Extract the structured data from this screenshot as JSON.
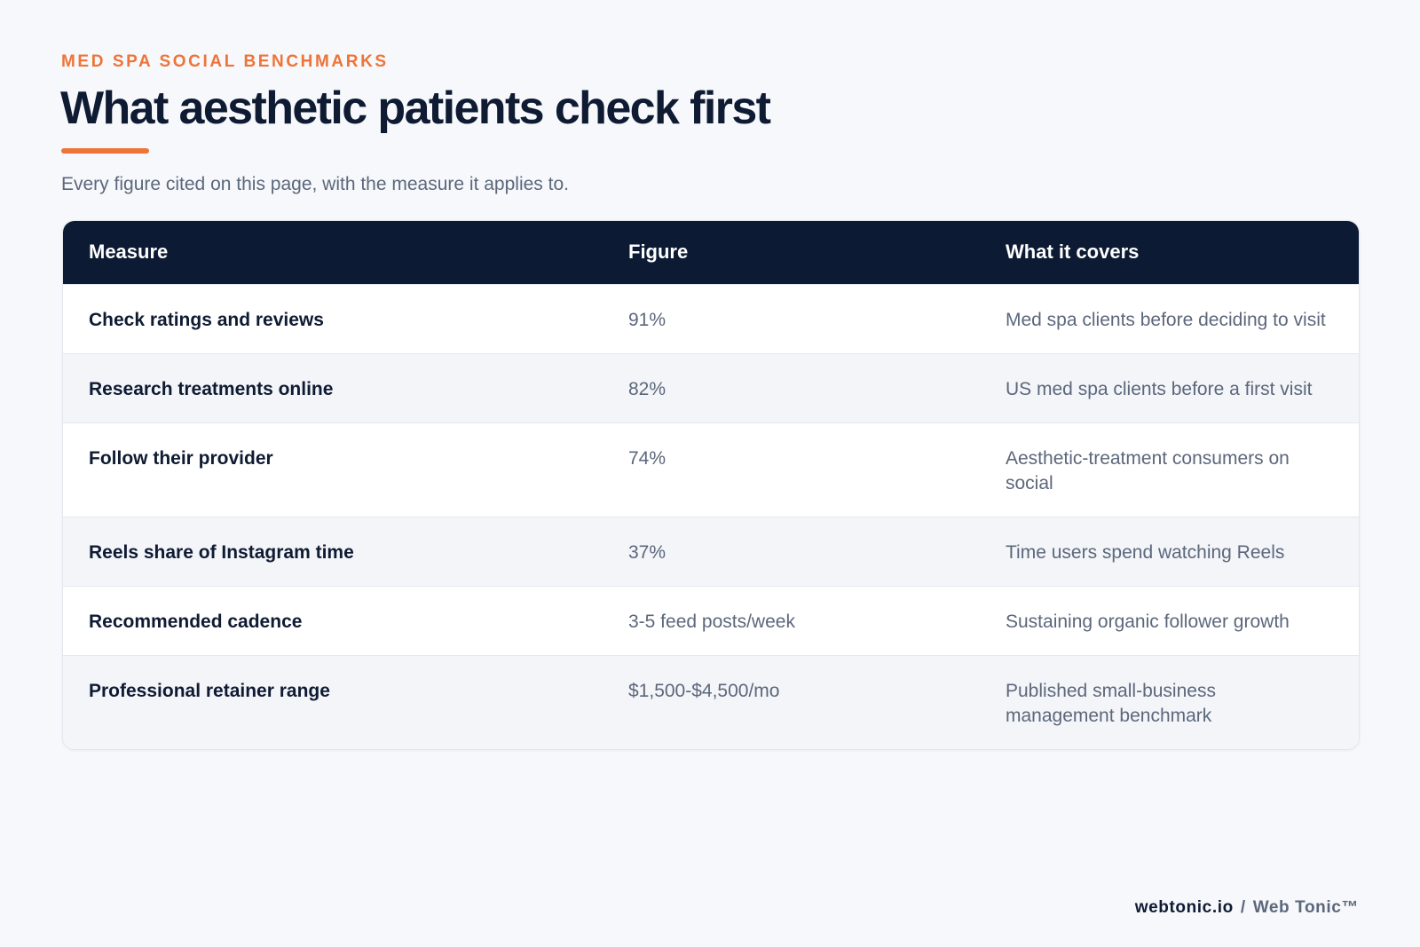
{
  "header": {
    "eyebrow": "MED SPA SOCIAL BENCHMARKS",
    "title": "What aesthetic patients check first",
    "subtitle": "Every figure cited on this page, with the measure it applies to.",
    "accent_color": "#ee7439",
    "title_color": "#0f1b33"
  },
  "table": {
    "header_color": "#0c1a33",
    "columns": [
      "Measure",
      "Figure",
      "What it covers"
    ],
    "rows": [
      {
        "measure": "Check ratings and reviews",
        "figure": "91%",
        "covers": "Med spa clients before deciding to visit"
      },
      {
        "measure": "Research treatments online",
        "figure": "82%",
        "covers": "US med spa clients before a first visit"
      },
      {
        "measure": "Follow their provider",
        "figure": "74%",
        "covers": "Aesthetic-treatment consumers on social"
      },
      {
        "measure": "Reels share of Instagram time",
        "figure": "37%",
        "covers": "Time users spend watching Reels"
      },
      {
        "measure": "Recommended cadence",
        "figure": "3-5 feed posts/week",
        "covers": "Sustaining organic follower growth"
      },
      {
        "measure": "Professional retainer range",
        "figure": "$1,500-$4,500/mo",
        "covers": "Published small-business management benchmark"
      }
    ]
  },
  "footer": {
    "domain": "webtonic.io",
    "separator": "/",
    "brand": "Web Tonic™"
  }
}
